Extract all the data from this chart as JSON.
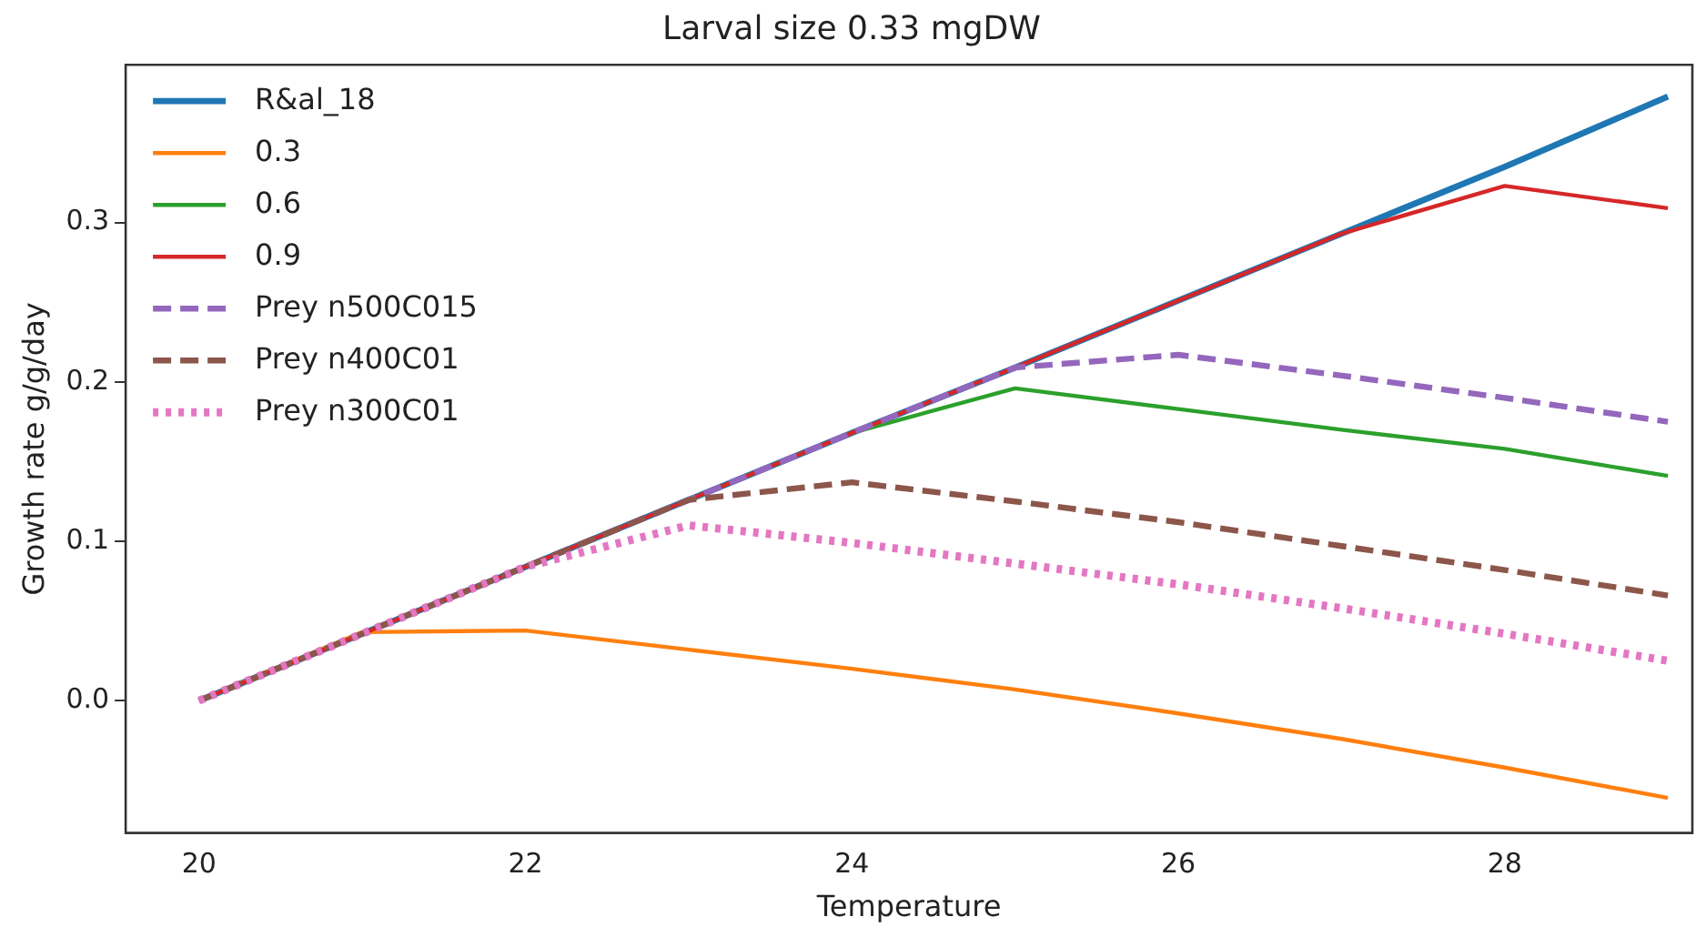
{
  "chart_data": {
    "type": "line",
    "title": "Larval size 0.33 mgDW",
    "xlabel": "Temperature",
    "ylabel": "Growth rate g/g/day",
    "x": [
      20,
      21,
      22,
      23,
      24,
      25,
      26,
      27,
      28,
      29
    ],
    "series": [
      {
        "name": "R&al_18",
        "color": "#1f77b4",
        "line_style": "solid",
        "values": [
          0,
          0.042,
          0.084,
          0.126,
          0.168,
          0.209,
          0.251,
          0.293,
          0.335,
          0.379
        ]
      },
      {
        "name": "0.3",
        "color": "#ff7f0e",
        "line_style": "solid",
        "values": [
          0,
          0.043,
          0.044,
          0.032,
          0.02,
          0.007,
          -0.008,
          -0.024,
          -0.042,
          -0.061
        ]
      },
      {
        "name": "0.6",
        "color": "#2ca02c",
        "line_style": "solid",
        "values": [
          null,
          null,
          null,
          0.126,
          0.168,
          0.196,
          0.183,
          0.17,
          0.158,
          0.141
        ]
      },
      {
        "name": "0.9",
        "color": "#d62728",
        "line_style": "solid",
        "values": [
          0,
          0.042,
          0.084,
          0.126,
          0.168,
          0.209,
          0.251,
          0.293,
          0.323,
          0.309
        ]
      },
      {
        "name": "Prey n500C015",
        "color": "#9467bd",
        "line_style": "dashed",
        "values": [
          0,
          0.042,
          0.084,
          0.126,
          0.168,
          0.209,
          0.217,
          0.204,
          0.19,
          0.175
        ]
      },
      {
        "name": "Prey n400C01",
        "color": "#8c564b",
        "line_style": "dashed",
        "values": [
          0,
          0.042,
          0.084,
          0.126,
          0.137,
          0.125,
          0.112,
          0.097,
          0.082,
          0.066
        ]
      },
      {
        "name": "Prey n300C01",
        "color": "#e377c2",
        "line_style": "dotted",
        "values": [
          0,
          0.042,
          0.084,
          0.11,
          0.099,
          0.086,
          0.073,
          0.058,
          0.042,
          0.025
        ]
      }
    ],
    "xlim": [
      19.55,
      29.15
    ],
    "ylim": [
      -0.083,
      0.399
    ],
    "xticks": [
      20,
      22,
      24,
      26,
      28
    ],
    "yticks": [
      {
        "value": 0,
        "label": "0.0"
      },
      {
        "value": 0.1,
        "label": "0.1"
      },
      {
        "value": 0.2,
        "label": "0.2"
      },
      {
        "value": 0.3,
        "label": "0.3"
      }
    ],
    "grid": false,
    "legend": "top left",
    "marker": "none"
  }
}
